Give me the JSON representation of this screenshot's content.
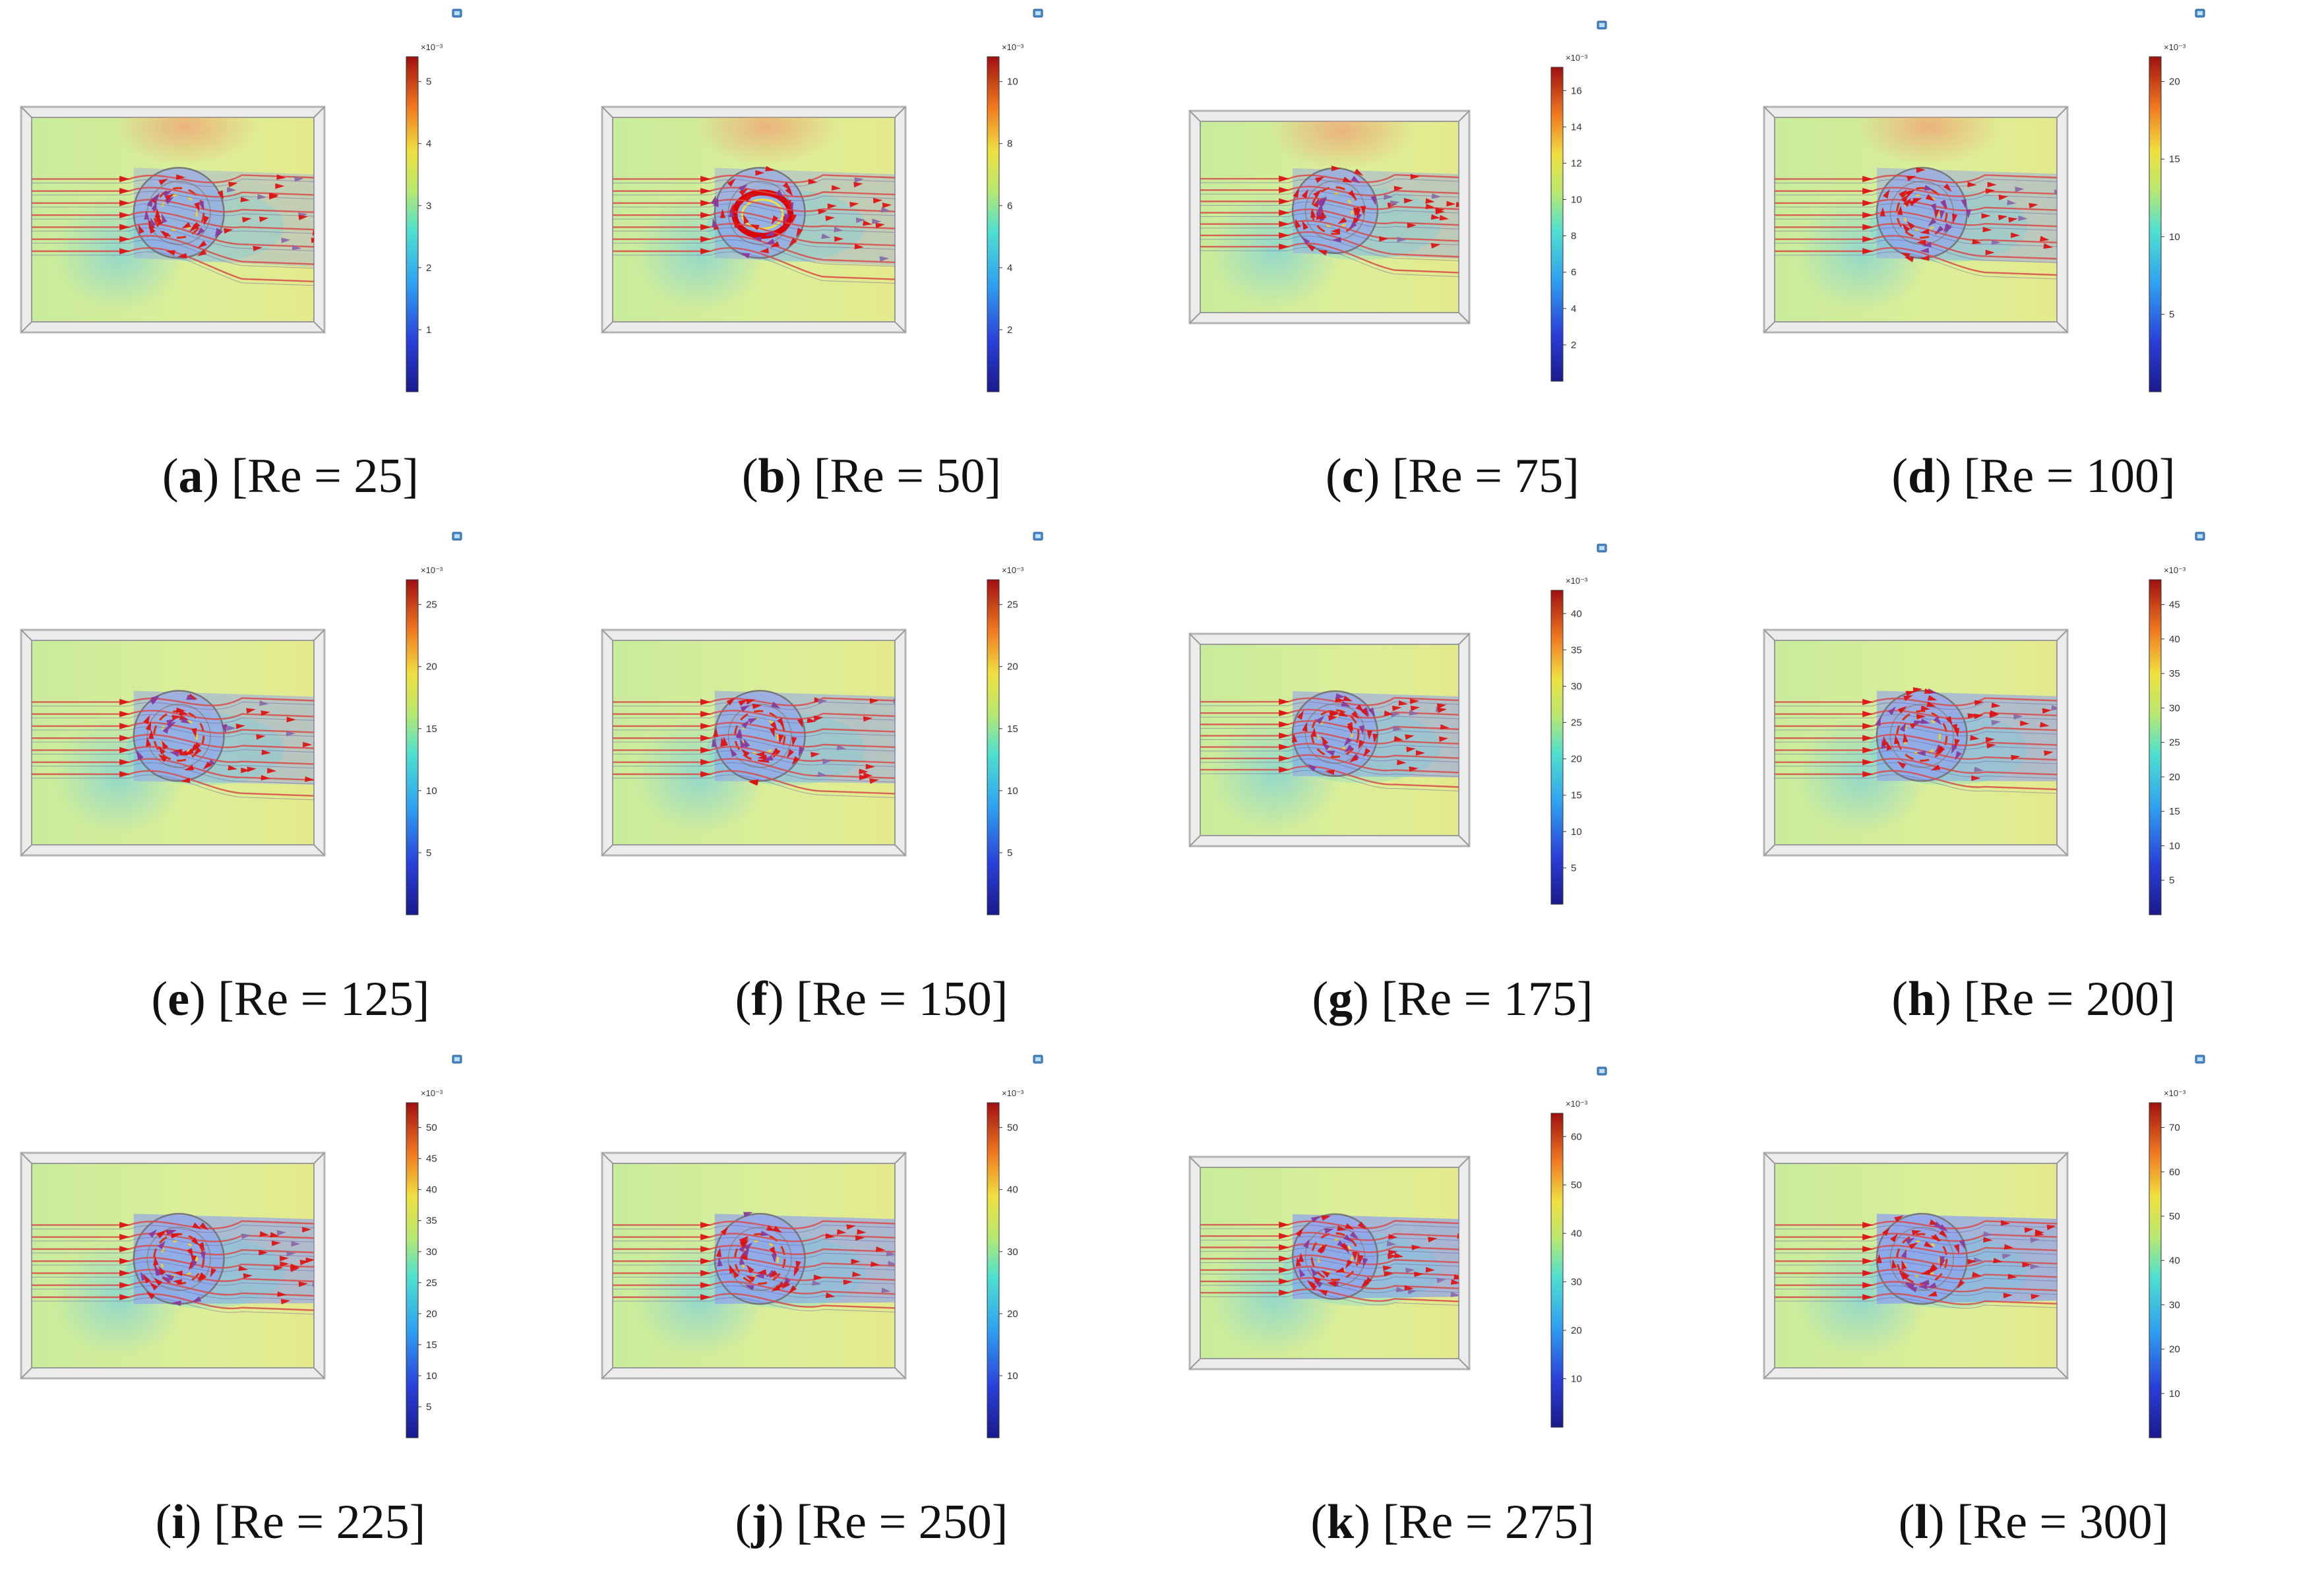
{
  "figure": {
    "multiplier_label": "×10⁻³",
    "colors": {
      "background_field": "#c8ec9c",
      "wake_field": "#8a9cf4",
      "stream_line": "#d84a4a",
      "arrow": "#dd1414",
      "frame": "#b4b4b4",
      "caption_text": "#111111"
    },
    "icon": "camera-toolbar-icon",
    "panels": [
      {
        "letter": "a",
        "label": "[Re = 25]",
        "re": 25,
        "ticks": [
          "1",
          "2",
          "3",
          "4",
          "5"
        ]
      },
      {
        "letter": "b",
        "label": "[Re = 50]",
        "re": 50,
        "ticks": [
          "2",
          "4",
          "6",
          "8",
          "10"
        ]
      },
      {
        "letter": "c",
        "label": "[Re = 75]",
        "re": 75,
        "ticks": [
          "2",
          "4",
          "6",
          "8",
          "10",
          "12",
          "14",
          "16"
        ]
      },
      {
        "letter": "d",
        "label": "[Re = 100]",
        "re": 100,
        "ticks": [
          "5",
          "10",
          "15",
          "20"
        ]
      },
      {
        "letter": "e",
        "label": "[Re = 125]",
        "re": 125,
        "ticks": [
          "5",
          "10",
          "15",
          "20",
          "25"
        ]
      },
      {
        "letter": "f",
        "label": "[Re = 150]",
        "re": 150,
        "ticks": [
          "5",
          "10",
          "15",
          "20",
          "25"
        ]
      },
      {
        "letter": "g",
        "label": "[Re = 175]",
        "re": 175,
        "ticks": [
          "5",
          "10",
          "15",
          "20",
          "25",
          "30",
          "35",
          "40"
        ]
      },
      {
        "letter": "h",
        "label": "[Re = 200]",
        "re": 200,
        "ticks": [
          "5",
          "10",
          "15",
          "20",
          "25",
          "30",
          "35",
          "40",
          "45"
        ]
      },
      {
        "letter": "i",
        "label": "[Re = 225]",
        "re": 225,
        "ticks": [
          "5",
          "10",
          "15",
          "20",
          "25",
          "30",
          "35",
          "40",
          "45",
          "50"
        ]
      },
      {
        "letter": "j",
        "label": "[Re = 250]",
        "re": 250,
        "ticks": [
          "10",
          "20",
          "30",
          "40",
          "50"
        ]
      },
      {
        "letter": "k",
        "label": "[Re = 275]",
        "re": 275,
        "ticks": [
          "10",
          "20",
          "30",
          "40",
          "50",
          "60"
        ]
      },
      {
        "letter": "l",
        "label": "[Re = 300]",
        "re": 300,
        "ticks": [
          "10",
          "20",
          "30",
          "40",
          "50",
          "60",
          "70"
        ]
      }
    ]
  }
}
